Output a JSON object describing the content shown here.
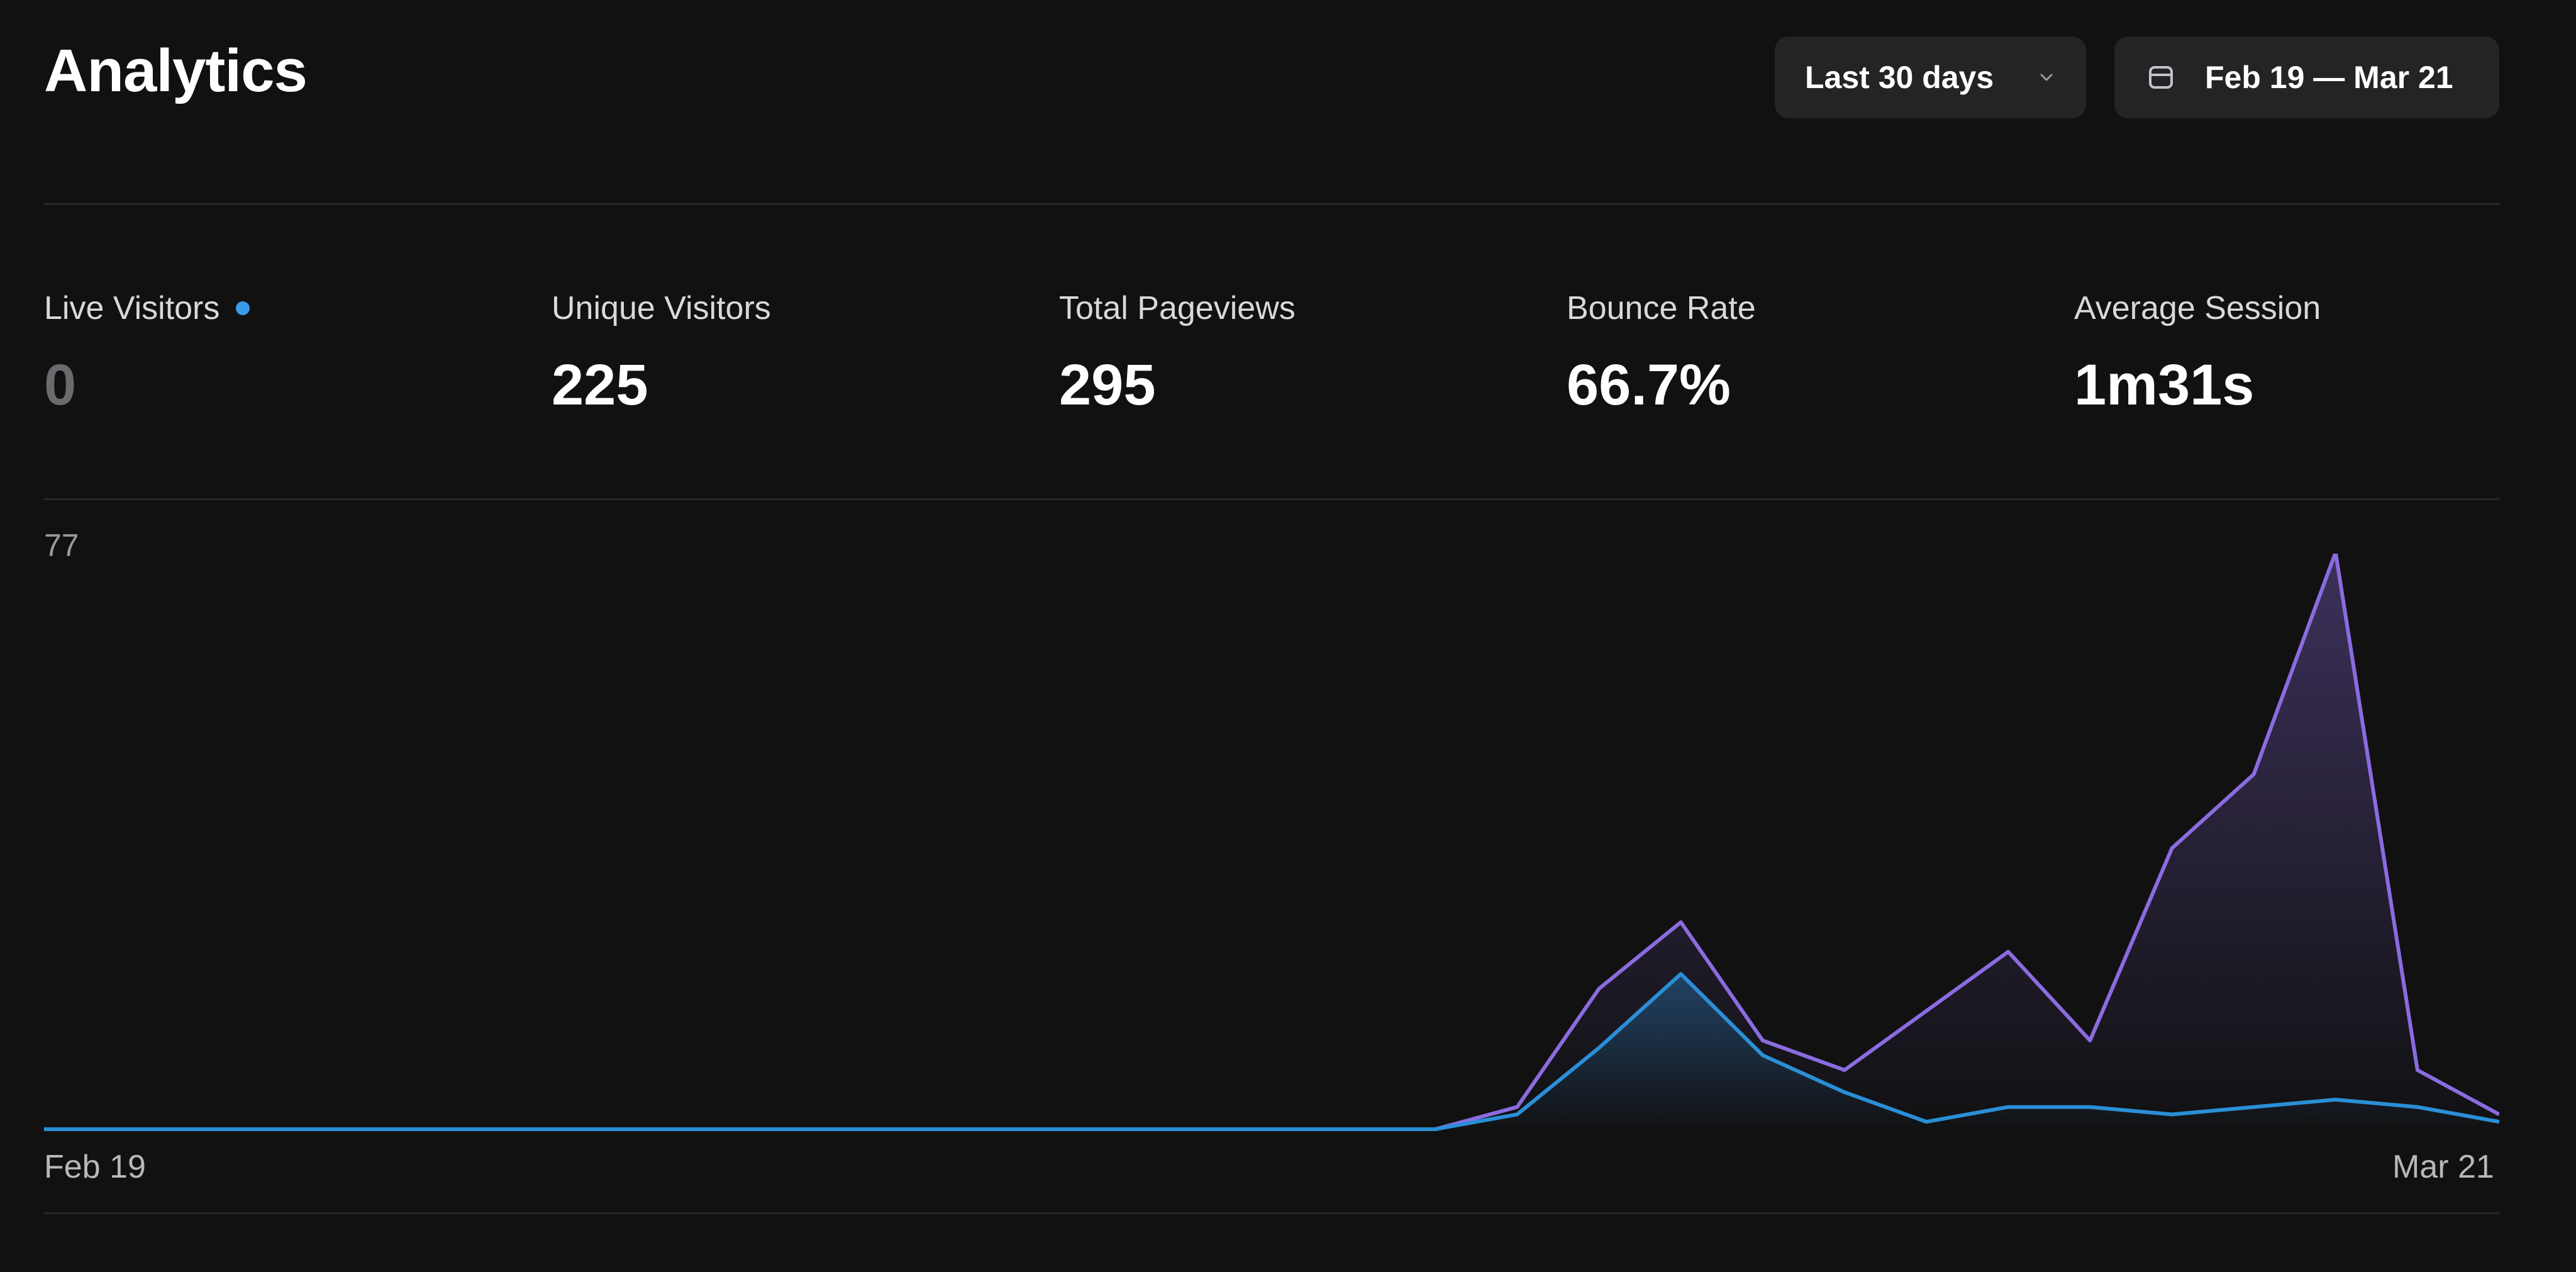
{
  "header": {
    "title": "Analytics",
    "range_select": "Last 30 days",
    "date_range": "Feb 19 — Mar 21"
  },
  "stats": [
    {
      "label": "Live Visitors",
      "value": "0"
    },
    {
      "label": "Unique Visitors",
      "value": "225"
    },
    {
      "label": "Total Pageviews",
      "value": "295"
    },
    {
      "label": "Bounce Rate",
      "value": "66.7%"
    },
    {
      "label": "Average Session",
      "value": "1m31s"
    }
  ],
  "colors": {
    "background": "#111112",
    "pageviews": "#8b6be0",
    "visitors": "#2a8fd6",
    "live_dot": "#3b9be8"
  },
  "chart_data": {
    "type": "area",
    "y_max_label": "77",
    "ylim": [
      0,
      77
    ],
    "x_start_label": "Feb 19",
    "x_end_label": "Mar 21",
    "x": [
      "Feb 19",
      "Feb 20",
      "Feb 21",
      "Feb 22",
      "Feb 23",
      "Feb 24",
      "Feb 25",
      "Feb 26",
      "Feb 27",
      "Feb 28",
      "Mar 1",
      "Mar 2",
      "Mar 3",
      "Mar 4",
      "Mar 5",
      "Mar 6",
      "Mar 7",
      "Mar 8",
      "Mar 9",
      "Mar 10",
      "Mar 11",
      "Mar 12",
      "Mar 13",
      "Mar 14",
      "Mar 15",
      "Mar 16",
      "Mar 17",
      "Mar 18",
      "Mar 19",
      "Mar 20",
      "Mar 21"
    ],
    "series": [
      {
        "key": "pageviews",
        "values": [
          0,
          0,
          0,
          0,
          0,
          0,
          0,
          0,
          0,
          0,
          0,
          0,
          0,
          0,
          0,
          0,
          0,
          0,
          3,
          19,
          28,
          12,
          8,
          16,
          24,
          12,
          38,
          48,
          78,
          8,
          2
        ]
      },
      {
        "key": "visitors",
        "values": [
          0,
          0,
          0,
          0,
          0,
          0,
          0,
          0,
          0,
          0,
          0,
          0,
          0,
          0,
          0,
          0,
          0,
          0,
          2,
          11,
          21,
          10,
          5,
          1,
          3,
          3,
          2,
          3,
          4,
          3,
          1
        ]
      }
    ]
  }
}
